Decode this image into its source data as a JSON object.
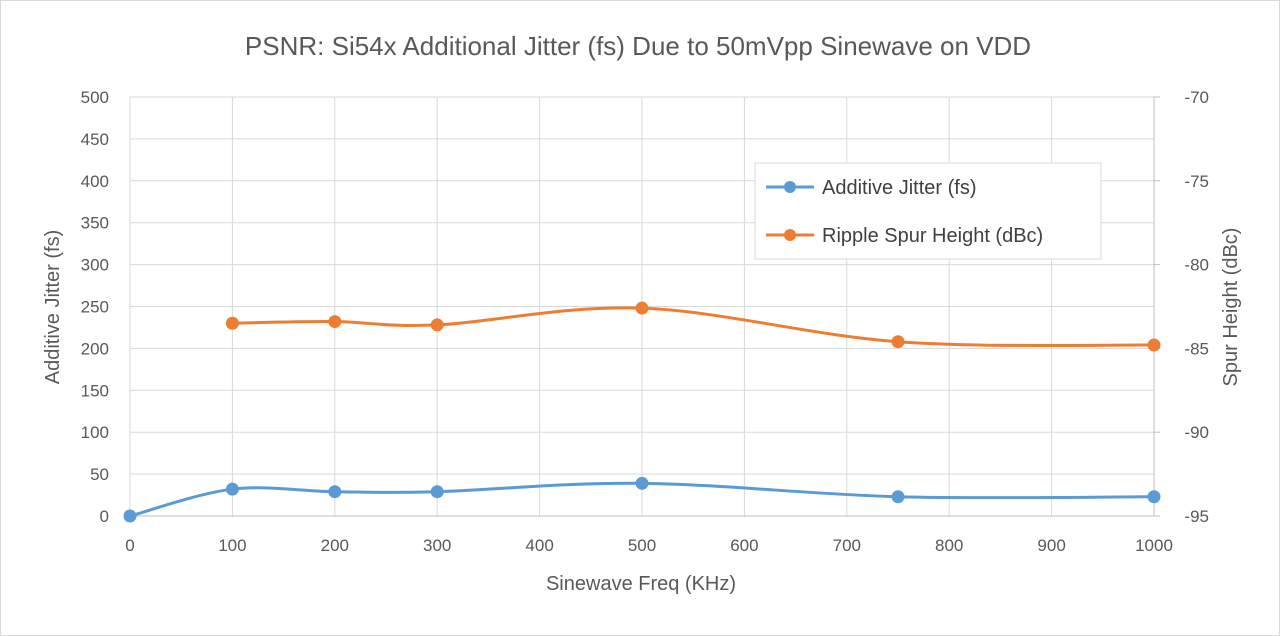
{
  "chart_data": {
    "type": "line",
    "title": "PSNR: Si54x Additional Jitter (fs) Due to 50mVpp Sinewave on VDD",
    "xlabel": "Sinewave Freq (KHz)",
    "ylabel": "Additive Jitter (fs)",
    "y2label": "Spur  Height (dBc)",
    "xlim": [
      0,
      1000
    ],
    "ylim": [
      0,
      500
    ],
    "y2lim": [
      -95,
      -70
    ],
    "x_ticks": [
      "0",
      "100",
      "200",
      "300",
      "400",
      "500",
      "600",
      "700",
      "800",
      "900",
      "1000"
    ],
    "y_ticks": [
      "0",
      "50",
      "100",
      "150",
      "200",
      "250",
      "300",
      "350",
      "400",
      "450",
      "500"
    ],
    "y2_ticks": [
      "-95",
      "-90",
      "-85",
      "-80",
      "-75",
      "-70"
    ],
    "grid": true,
    "legend_position": "top-right",
    "series": [
      {
        "name": "Additive Jitter (fs)",
        "axis": "left",
        "color": "#5b9bd5",
        "x": [
          0,
          100,
          200,
          300,
          500,
          750,
          1000
        ],
        "values": [
          0,
          32,
          29,
          29,
          39,
          23,
          23
        ]
      },
      {
        "name": "Ripple Spur Height (dBc)",
        "axis": "right",
        "color": "#ed7d31",
        "x": [
          100,
          200,
          300,
          500,
          750,
          1000
        ],
        "values": [
          -83.5,
          -83.4,
          -83.6,
          -82.6,
          -84.6,
          -84.8
        ]
      }
    ]
  }
}
